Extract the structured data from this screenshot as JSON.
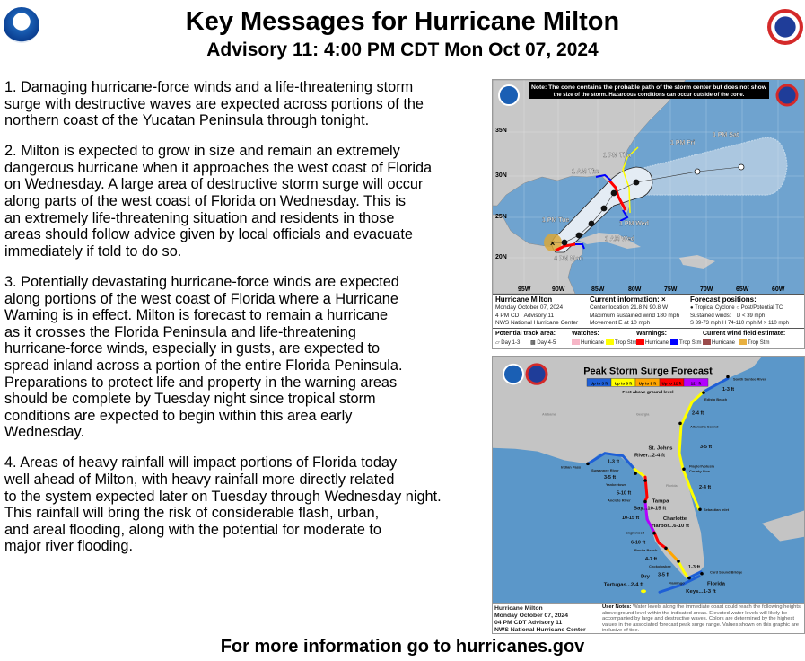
{
  "header": {
    "title": "Key Messages for Hurricane Milton",
    "subtitle": "Advisory 11: 4:00 PM CDT Mon Oct 07, 2024",
    "left_logo": "NOAA",
    "right_logo": "National Weather Service"
  },
  "messages": [
    {
      "lines": [
        "1. Damaging hurricane-force winds and a life-threatening storm",
        "surge with destructive waves are expected across portions of the",
        "northern coast of the Yucatan Peninsula through tonight."
      ]
    },
    {
      "lines": [
        "2. Milton is expected to grow in size and remain an extremely",
        "dangerous hurricane when it approaches the west coast of Florida",
        "on Wednesday. A large area of destructive storm surge will occur",
        "along parts of the west coast of Florida on Wednesday.  This is",
        "an extremely life-threatening situation and residents in those",
        "areas should follow advice given by local officials and evacuate",
        "immediately if told to do so."
      ]
    },
    {
      "lines": [
        "3. Potentially devastating hurricane-force winds are expected",
        "along portions of the west coast of Florida where a Hurricane",
        "Warning is in effect.  Milton is forecast to remain a hurricane",
        "as it crosses the Florida Peninsula and life-threatening",
        "hurricane-force winds, especially in gusts, are expected to",
        "spread inland across a portion of the entire Florida Peninsula.",
        "Preparations to protect life and property in the warning areas",
        "should be complete by Tuesday night since tropical storm",
        "conditions are expected to begin within this area early",
        "Wednesday."
      ]
    },
    {
      "lines": [
        "4. Areas of heavy rainfall will impact portions of Florida today",
        "well ahead of Milton, with heavy rainfall more directly related",
        "to the system expected later on Tuesday through Wednesday night.",
        "This rainfall will bring the risk of considerable flash, urban,",
        "and areal flooding, along with the potential for moderate to",
        "major river flooding."
      ]
    }
  ],
  "cone_map": {
    "note": [
      "Note: The cone contains the probable path of the storm center but does not show",
      "the size of the storm. Hazardous conditions can occur outside of the cone."
    ],
    "lat_labels": [
      "35N",
      "30N",
      "25N",
      "20N"
    ],
    "lon_labels": [
      "95W",
      "90W",
      "85W",
      "80W",
      "75W",
      "70W",
      "65W",
      "60W"
    ],
    "time_labels": [
      "1 PM Sat",
      "1 PM Fri",
      "1 PM Thu",
      "1 AM Thu",
      "1 PM Tue",
      "1 PM Wed",
      "1 AM Wed",
      "4 PM Mon"
    ],
    "info": {
      "storm": "Hurricane Milton",
      "date": "Monday October 07, 2024",
      "advisory": "4 PM CDT Advisory 11",
      "center": "NWS National Hurricane Center",
      "current_title": "Current information: ×",
      "location": "Center location 21.8 N 90.8 W",
      "max_wind": "Maximum sustained wind 180 mph",
      "movement": "Movement E at 10 mph",
      "forecast_title": "Forecast positions:",
      "tc": "● Tropical Cyclone",
      "post": "○ Post/Potential TC",
      "sustained": "Sustained winds:",
      "d": "D < 39 mph",
      "shm": "S 39-73 mph  H 74-110 mph  M > 110 mph"
    },
    "legend": {
      "track_title": "Potential track area:",
      "day13": "Day 1-3",
      "day45": "Day 4-5",
      "watches_title": "Watches:",
      "warnings_title": "Warnings:",
      "wind_title": "Current wind field estimate:",
      "hurricane": "Hurricane",
      "trop_stm": "Trop Stm"
    },
    "colors": {
      "ocean": "#6fa3cf",
      "land": "#c8c8c8",
      "hurricane_watch": "#f7b6c7",
      "ts_watch": "#ffff00",
      "hurricane_warning": "#ff0000",
      "ts_warning": "#0000ff",
      "hurricane_wind": "#9a4a4a",
      "ts_wind": "#e8b040"
    }
  },
  "surge_map": {
    "title": "Peak Storm Surge Forecast",
    "legend": [
      "Up to 3 ft",
      "Up to 6 ft",
      "Up to 9 ft",
      "Up to 12 ft",
      "12+ ft"
    ],
    "legend_colors": [
      "#1e5fd6",
      "#ffff00",
      "#ffa500",
      "#ff0000",
      "#b200ff"
    ],
    "legend_caption": "Feet above ground level",
    "places": [
      "South Santee River",
      "Edisto Beach",
      "Altamaha Sound",
      "Flagler/Volusia",
      "County Line",
      "Sebastian Inlet",
      "Card Sound Bridge",
      "Flamingo",
      "Chokoloskee",
      "Bonita Beach",
      "Englewood",
      "Anclote River",
      "Yankeetown",
      "Suwannee River",
      "Indian Pass",
      "Alabama",
      "Georgia",
      "Florida"
    ],
    "values": [
      "1-3 ft",
      "2-4 ft",
      "3-5 ft",
      "2-4 ft",
      "1-3 ft",
      "3-5 ft",
      "4-7 ft",
      "6-10 ft",
      "10-15 ft",
      "5-10 ft",
      "3-5 ft",
      "1-3 ft"
    ],
    "bays": [
      "St. Johns",
      "River...2-4 ft",
      "Tampa",
      "Bay...10-15 ft",
      "Charlotte",
      "Harbor...6-10 ft",
      "Dry",
      "Tortugas...2-4 ft",
      "Florida",
      "Keys...1-3 ft"
    ],
    "info": {
      "storm": "Hurricane Milton",
      "date": "Monday October 07, 2024",
      "advisory": "04 PM CDT Advisory 11",
      "center": "NWS National Hurricane Center",
      "notes_label": "User Notes:",
      "notes": "Water levels along the immediate coast could reach the following heights above ground level within the indicated areas. Elevated water levels will likely be accompanied by large and destructive waves. Colors are determined by the highest values in the associated forecast peak surge range. Values shown on this graphic are inclusive of tide."
    }
  },
  "footer": "For more information go to hurricanes.gov"
}
